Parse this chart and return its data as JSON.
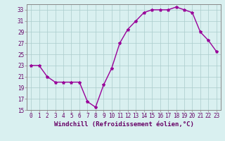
{
  "x": [
    0,
    1,
    2,
    3,
    4,
    5,
    6,
    7,
    8,
    9,
    10,
    11,
    12,
    13,
    14,
    15,
    16,
    17,
    18,
    19,
    20,
    21,
    22,
    23
  ],
  "y": [
    23,
    23,
    21,
    20,
    20,
    20,
    20,
    16.5,
    15.5,
    19.5,
    22.5,
    27,
    29.5,
    31,
    32.5,
    33,
    33,
    33,
    33.5,
    33,
    32.5,
    29,
    27.5,
    25.5
  ],
  "line_color": "#990099",
  "marker": "*",
  "marker_size": 3,
  "bg_color": "#d9f0f0",
  "grid_color": "#aacccc",
  "xlabel": "Windchill (Refroidissement éolien,°C)",
  "xlim": [
    -0.5,
    23.5
  ],
  "ylim": [
    15,
    34
  ],
  "yticks": [
    15,
    17,
    19,
    21,
    23,
    25,
    27,
    29,
    31,
    33
  ],
  "xticks": [
    0,
    1,
    2,
    3,
    4,
    5,
    6,
    7,
    8,
    9,
    10,
    11,
    12,
    13,
    14,
    15,
    16,
    17,
    18,
    19,
    20,
    21,
    22,
    23
  ],
  "tick_fontsize": 5.5,
  "xlabel_fontsize": 6.5,
  "line_width": 1.0
}
